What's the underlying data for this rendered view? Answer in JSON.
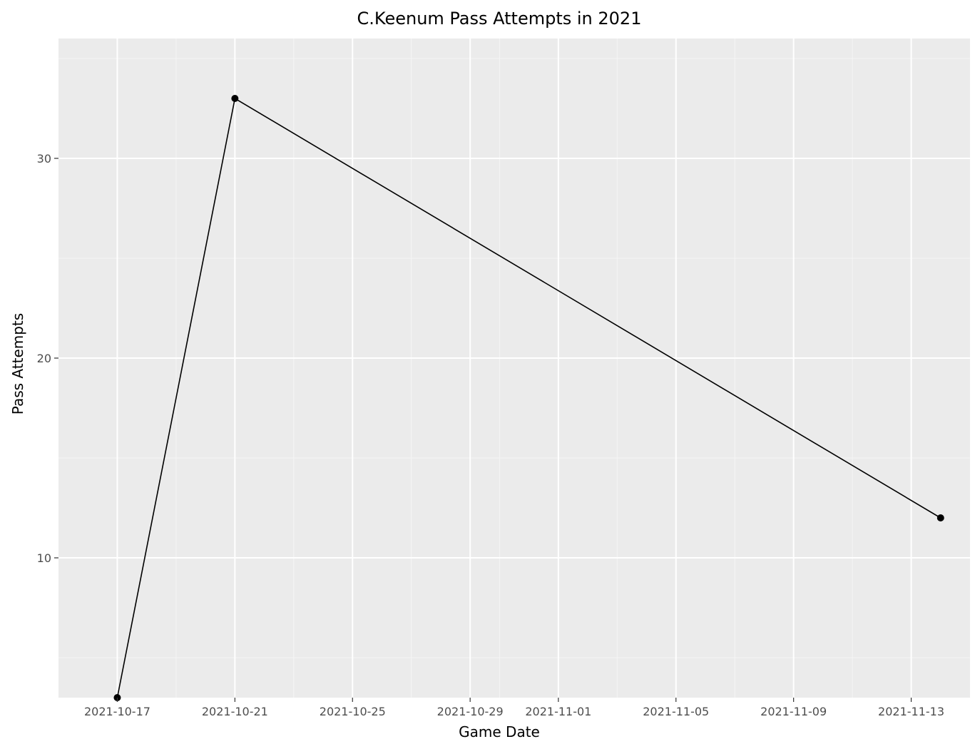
{
  "chart_data": {
    "type": "line",
    "title": "C.Keenum Pass Attempts in 2021",
    "xlabel": "Game Date",
    "ylabel": "Pass Attempts",
    "x_type": "date",
    "xlim": [
      "2021-10-15",
      "2021-11-15"
    ],
    "ylim": [
      3,
      36
    ],
    "x_ticks": [
      "2021-10-17",
      "2021-10-21",
      "2021-10-25",
      "2021-10-29",
      "2021-11-01",
      "2021-11-05",
      "2021-11-09",
      "2021-11-13"
    ],
    "x_minor_ticks": [
      "2021-10-19",
      "2021-10-23",
      "2021-10-27",
      "2021-10-30",
      "2021-11-03",
      "2021-11-07",
      "2021-11-11"
    ],
    "y_ticks": [
      10,
      20,
      30
    ],
    "y_minor_ticks": [
      5,
      15,
      25,
      35
    ],
    "grid": true,
    "legend": "none",
    "colors": {
      "panel_background": "#ebebeb",
      "grid_major": "#ffffff",
      "grid_minor": "#f5f5f5",
      "line": "#000000",
      "point": "#000000",
      "tick_text": "#4d4d4d",
      "tick_mark": "#333333"
    },
    "series": [
      {
        "x": [
          "2021-10-17",
          "2021-10-21",
          "2021-11-14"
        ],
        "y": [
          3,
          33,
          12
        ]
      }
    ]
  }
}
